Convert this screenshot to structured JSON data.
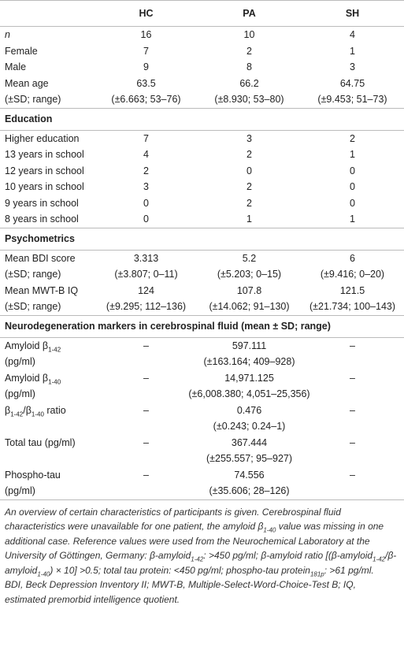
{
  "table": {
    "columns": [
      "HC",
      "PA",
      "SH"
    ],
    "sections": [
      {
        "rows": [
          {
            "label": "n",
            "values": [
              "16",
              "10",
              "4"
            ]
          },
          {
            "label": "Female",
            "values": [
              "7",
              "2",
              "1"
            ]
          },
          {
            "label": "Male",
            "values": [
              "9",
              "8",
              "3"
            ]
          },
          {
            "label": "Mean age",
            "values": [
              "63.5",
              "66.2",
              "64.75"
            ]
          },
          {
            "label": "(±SD; range)",
            "values": [
              "(±6.663; 53–76)",
              "(±8.930; 53–80)",
              "(±9.453; 51–73)"
            ]
          }
        ]
      },
      {
        "title": "Education",
        "rows": [
          {
            "label": "Higher education",
            "values": [
              "7",
              "3",
              "2"
            ]
          },
          {
            "label": "13 years in school",
            "values": [
              "4",
              "2",
              "1"
            ]
          },
          {
            "label": "12 years in school",
            "values": [
              "2",
              "0",
              "0"
            ]
          },
          {
            "label": "10 years in school",
            "values": [
              "3",
              "2",
              "0"
            ]
          },
          {
            "label": "9 years in school",
            "values": [
              "0",
              "2",
              "0"
            ]
          },
          {
            "label": "8 years in school",
            "values": [
              "0",
              "1",
              "1"
            ]
          }
        ]
      },
      {
        "title": "Psychometrics",
        "rows": [
          {
            "label": "Mean BDI score",
            "values": [
              "3.313",
              "5.2",
              "6"
            ]
          },
          {
            "label": "(±SD; range)",
            "values": [
              "(±3.807; 0–11)",
              "(±5.203; 0–15)",
              "(±9.416; 0–20)"
            ]
          },
          {
            "label": "Mean MWT-B IQ",
            "values": [
              "124",
              "107.8",
              "121.5"
            ]
          },
          {
            "label": "(±SD; range)",
            "values": [
              "(±9.295; 112–136)",
              "(±14.062; 91–130)",
              "(±21.734; 100–143)"
            ]
          }
        ]
      },
      {
        "title": "Neurodegeneration markers in cerebrospinal fluid (mean ± SD; range)",
        "rows": [
          {
            "label": [
              "Amyloid β",
              {
                "sub": "1-42"
              }
            ],
            "values": [
              "–",
              "597.111",
              "–"
            ]
          },
          {
            "label": "(pg/ml)",
            "value": "(±163.164; 409–928)"
          },
          {
            "label": [
              "Amyloid β",
              {
                "sub": "1-40"
              }
            ],
            "values": [
              "–",
              "14,971.125",
              "–"
            ]
          },
          {
            "label": "(pg/ml)",
            "value": "(±6,008.380; 4,051–25,356)"
          },
          {
            "label": [
              "β",
              {
                "sub": "1-42"
              },
              "/β",
              {
                "sub": "1-40"
              },
              " ratio"
            ],
            "values": [
              "–",
              "0.476",
              "–"
            ]
          },
          {
            "value": "(±0.243; 0.24–1)"
          },
          {
            "label": "Total tau (pg/ml)",
            "values": [
              "–",
              "367.444",
              "–"
            ]
          },
          {
            "value": "(±255.557; 95–927)"
          },
          {
            "label": "Phospho-tau",
            "values": [
              "–",
              "74.556",
              "–"
            ]
          },
          {
            "label": "(pg/ml)",
            "value": "(±35.606; 28–126)"
          }
        ]
      }
    ]
  },
  "footnote": {
    "paragraphs": [
      [
        "An overview of certain characteristics of participants is given. Cerebrospinal fluid characteristics were unavailable for one patient, the amyloid β",
        {
          "sub": "1-40"
        },
        " value was missing in one additional case. Reference values were used from the Neurochemical Laboratory at the University of Göttingen, Germany: β-amyloid",
        {
          "sub": "1-42"
        },
        ": >450 pg/ml; β-amyloid ratio [(β-amyloid",
        {
          "sub": "1-42"
        },
        "/β-amyloid",
        {
          "sub": "1-40"
        },
        ") × 10] >0.5; total tau protein: <450 pg/ml; phospho-tau protein",
        {
          "sub": "181p"
        },
        ": >61 pg/ml."
      ],
      [
        "BDI, Beck Depression Inventory II; MWT-B, Multiple-Select-Word-Choice-Test B; IQ, estimated premorbid intelligence quotient."
      ]
    ]
  }
}
